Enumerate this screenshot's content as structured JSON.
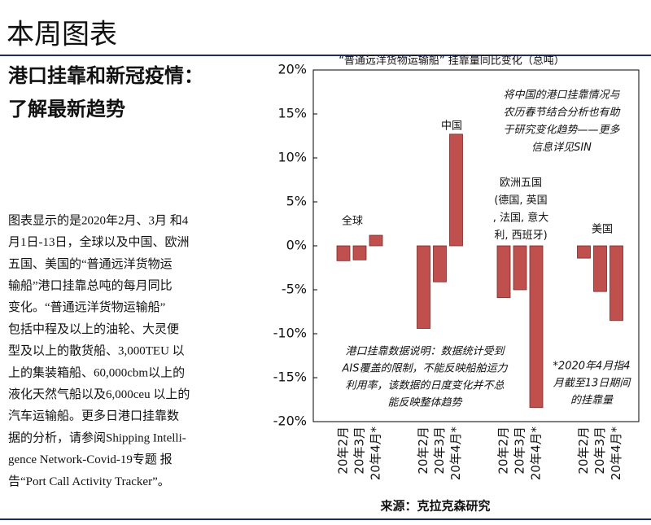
{
  "header": {
    "title": "本周图表",
    "subtitle": [
      "港口挂靠和新冠疫情：",
      "了解最新趋势"
    ]
  },
  "body": {
    "lines": [
      "图表显示的是2020年2月、3月 和4",
      "月1日-13日，全球以及中国、欧洲",
      "五国、美国的“普通远洋货物运",
      "输船”港口挂靠总吨的每月同比",
      "变化。“普通远洋货物运输船”",
      "包括中程及以上的油轮、大灵便",
      "型及以上的散货船、3,000TEU 以",
      "上的集装箱船、60,000cbm以上的",
      "液化天然气船以及6,000ceu 以上的",
      "汽车运输船。更多日港口挂靠数",
      "据的分析，请参阅Shipping Intelli-",
      "gence  Network-Covid-19专题 报",
      "告“Port Call Activity Tracker”。"
    ]
  },
  "chart_data": {
    "type": "bar",
    "title": "“普通远洋货物运输船” 挂靠量同比变化（总吨）",
    "categories": [
      "20年2月",
      "20年3月",
      "20年4月*",
      "20年2月",
      "20年3月",
      "20年4月*",
      "20年2月",
      "20年3月",
      "20年4月*",
      "20年2月",
      "20年3月",
      "20年4月*"
    ],
    "values": [
      -1.7,
      -1.6,
      1.2,
      -9.4,
      -4.1,
      12.7,
      -5.9,
      -5.0,
      -18.4,
      -1.4,
      -5.2,
      -8.5
    ],
    "color": "#c0504d",
    "groups": [
      [
        "全球"
      ],
      [
        "中国"
      ],
      [
        "欧洲五国",
        "(德国, 英国",
        ", 法国, 意大",
        "利, 西班牙)"
      ],
      [
        "美国"
      ]
    ],
    "ylim": [
      -20,
      20
    ],
    "yticks": [
      {
        "value": -20,
        "label": "-20%"
      },
      {
        "value": -15,
        "label": "-15%"
      },
      {
        "value": -10,
        "label": "-10%"
      },
      {
        "value": -5,
        "label": "-5%"
      },
      {
        "value": 0,
        "label": "0%"
      },
      {
        "value": 5,
        "label": "5%"
      },
      {
        "value": 10,
        "label": "10%"
      },
      {
        "value": 15,
        "label": "15%"
      },
      {
        "value": 20,
        "label": "20%"
      }
    ],
    "annotations": [
      [
        "将中国的港口挂靠情况与",
        "农历春节结合分析也有助",
        "于研究变化趋势——更多",
        "信息详见SIN"
      ],
      [
        "港口挂靠数据说明：数据统计受到",
        "AIS覆盖的限制，不能反映船舶运力",
        "利用率，该数据的日度变化并不总",
        "能反映整体趋势"
      ],
      [
        "*2020年4月指4",
        "月截至13日期间",
        "的挂靠量"
      ]
    ],
    "source": "来源：克拉克森研究"
  }
}
